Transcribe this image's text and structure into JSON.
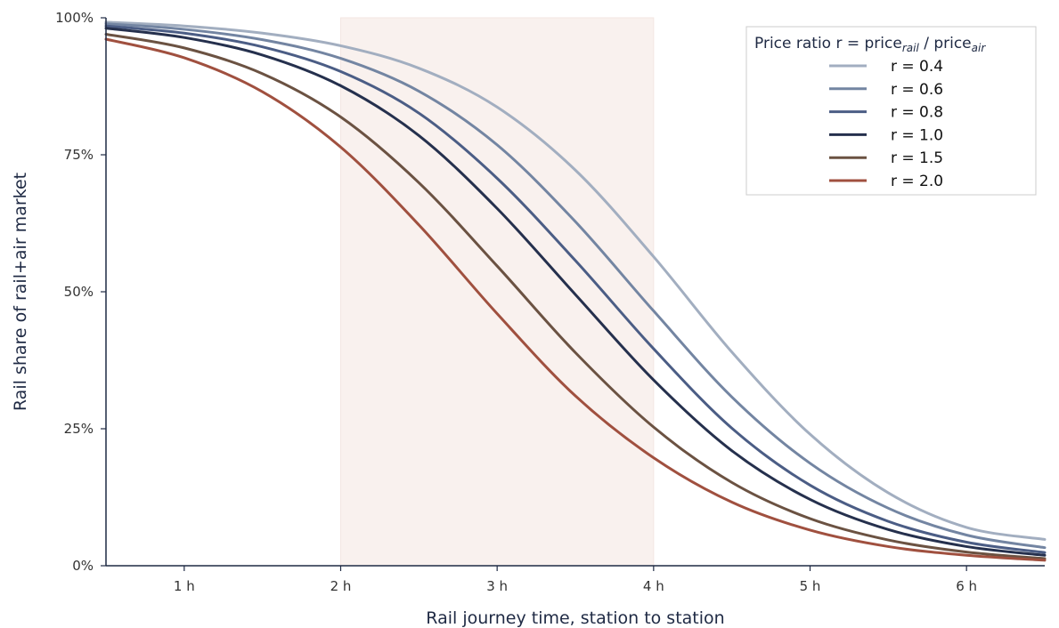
{
  "chart_data": {
    "type": "line",
    "xlabel": "Rail journey time, station to station",
    "ylabel": "Rail share of rail+air market",
    "xlim": [
      0.5,
      6.5
    ],
    "ylim": [
      0,
      100
    ],
    "x_ticks": [
      1,
      2,
      3,
      4,
      5,
      6
    ],
    "x_tick_labels": [
      "1 h",
      "2 h",
      "3 h",
      "4 h",
      "5 h",
      "6 h"
    ],
    "y_ticks": [
      0,
      25,
      50,
      75,
      100
    ],
    "y_tick_labels": [
      "0%",
      "25%",
      "50%",
      "75%",
      "100%"
    ],
    "grid": false,
    "shaded_band": {
      "x_start": 2,
      "x_end": 4,
      "color": "#f9f1ee"
    },
    "legend": {
      "placement": "top-right",
      "title_main": "Price ratio  r = price",
      "title_sub1": "rail",
      "title_mid": " / price",
      "title_sub2": "air"
    },
    "x": [
      0.5,
      1.0,
      1.5,
      2.0,
      2.5,
      3.0,
      3.5,
      4.0,
      4.5,
      5.0,
      5.5,
      6.0,
      6.5
    ],
    "series": [
      {
        "name": "r = 0.4",
        "color": "#a2aec0",
        "values": [
          99.2,
          98.5,
          97.2,
          94.9,
          90.8,
          83.7,
          72.2,
          56.4,
          39.0,
          24.0,
          13.3,
          7.0,
          4.8
        ]
      },
      {
        "name": "r = 0.6",
        "color": "#7385a2",
        "values": [
          98.9,
          97.9,
          96.0,
          92.6,
          86.6,
          76.8,
          62.8,
          46.5,
          30.8,
          18.7,
          10.5,
          5.6,
          3.3
        ]
      },
      {
        "name": "r = 0.8",
        "color": "#4b5d85",
        "values": [
          98.5,
          97.2,
          94.7,
          90.2,
          82.6,
          70.7,
          55.7,
          39.6,
          25.1,
          14.7,
          8.1,
          4.3,
          2.4
        ]
      },
      {
        "name": "r = 1.0",
        "color": "#25304d",
        "values": [
          98.1,
          96.4,
          93.2,
          87.6,
          78.5,
          65.2,
          49.5,
          33.9,
          21.0,
          12.1,
          6.6,
          3.5,
          1.9
        ]
      },
      {
        "name": "r = 1.5",
        "color": "#6b5242",
        "values": [
          97.0,
          94.5,
          89.8,
          81.9,
          69.9,
          54.7,
          38.9,
          25.3,
          15.2,
          8.6,
          4.7,
          2.5,
          1.3
        ]
      },
      {
        "name": "r = 2.0",
        "color": "#a0503f",
        "values": [
          96.1,
          92.7,
          86.5,
          76.4,
          62.2,
          46.0,
          31.0,
          19.7,
          11.6,
          6.5,
          3.5,
          1.9,
          1.0
        ]
      }
    ]
  }
}
